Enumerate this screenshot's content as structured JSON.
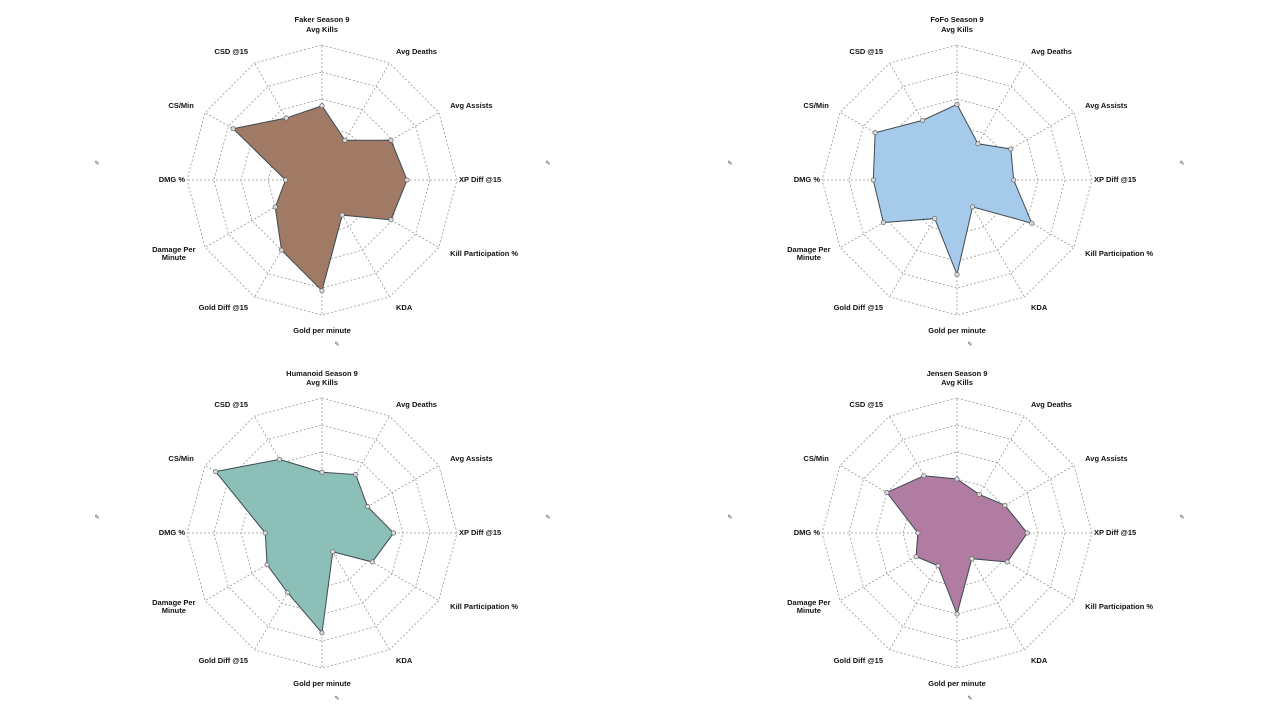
{
  "chart_data": [
    {
      "type": "radar",
      "title": "Faker Season 9",
      "axes": [
        "Avg Kills",
        "Avg Deaths",
        "Avg Assists",
        "XP Diff @15",
        "Kill Participation %",
        "KDA",
        "Gold per minute",
        "Gold Diff @15",
        "Damage Per Minute",
        "DMG %",
        "CS/Min",
        "CSD @15"
      ],
      "values": [
        0.55,
        0.34,
        0.59,
        0.63,
        0.59,
        0.3,
        0.82,
        0.6,
        0.4,
        0.27,
        0.76,
        0.53
      ],
      "color": "#a07a64"
    },
    {
      "type": "radar",
      "title": "FoFo Season 9",
      "axes": [
        "Avg Kills",
        "Avg Deaths",
        "Avg Assists",
        "XP Diff @15",
        "Kill Participation %",
        "KDA",
        "Gold per minute",
        "Gold Diff @15",
        "Damage Per Minute",
        "DMG %",
        "CS/Min",
        "CSD @15"
      ],
      "values": [
        0.56,
        0.31,
        0.46,
        0.42,
        0.64,
        0.23,
        0.7,
        0.33,
        0.63,
        0.62,
        0.7,
        0.51
      ],
      "color": "#a6cbea"
    },
    {
      "type": "radar",
      "title": "Humanoid Season 9",
      "axes": [
        "Avg Kills",
        "Avg Deaths",
        "Avg Assists",
        "XP Diff @15",
        "Kill Participation %",
        "KDA",
        "Gold per minute",
        "Gold Diff @15",
        "Damage Per Minute",
        "DMG %",
        "CS/Min",
        "CSD @15"
      ],
      "values": [
        0.45,
        0.5,
        0.39,
        0.53,
        0.43,
        0.16,
        0.74,
        0.51,
        0.47,
        0.42,
        0.91,
        0.63
      ],
      "color": "#8bbfb8"
    },
    {
      "type": "radar",
      "title": "Jensen Season 9",
      "axes": [
        "Avg Kills",
        "Avg Deaths",
        "Avg Assists",
        "XP Diff @15",
        "Kill Participation %",
        "KDA",
        "Gold per minute",
        "Gold Diff @15",
        "Damage Per Minute",
        "DMG %",
        "CS/Min",
        "CSD @15"
      ],
      "values": [
        0.4,
        0.33,
        0.41,
        0.52,
        0.43,
        0.22,
        0.6,
        0.28,
        0.35,
        0.29,
        0.6,
        0.49
      ],
      "color": "#b07ca2"
    }
  ],
  "colors": {
    "grid": "#999999",
    "outline": "#3d4a52",
    "marker": "#d9d9d9"
  },
  "pin_icon": "📌"
}
